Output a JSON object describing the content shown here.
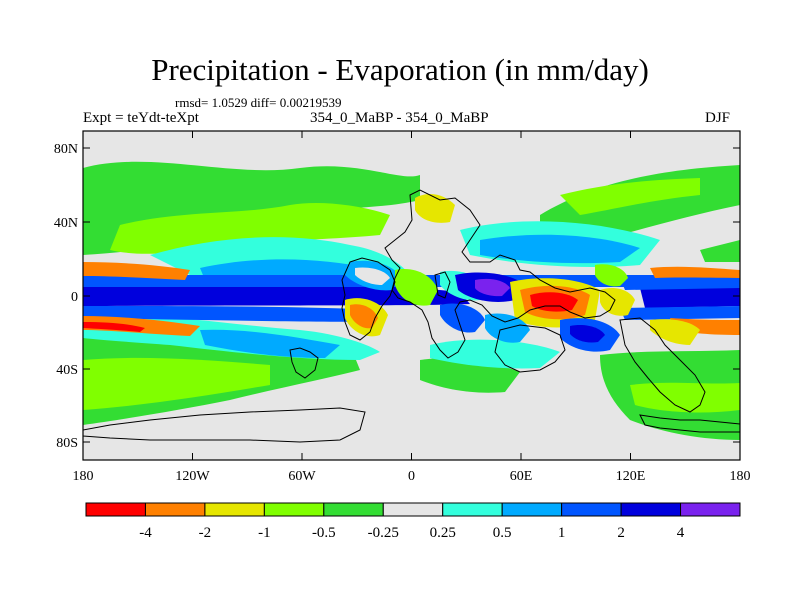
{
  "title": "Precipitation - Evaporation (in mm/day)",
  "stats": "rmsd= 1.0529 diff= 0.00219539",
  "expt_label": "Expt = teYdt-teXpt",
  "subtitle": "354_0_MaBP - 354_0_MaBP",
  "season": "DJF",
  "y_ticks": [
    "80N",
    "40N",
    "0",
    "40S",
    "80S"
  ],
  "x_ticks": [
    "180",
    "120W",
    "60W",
    "0",
    "60E",
    "120E",
    "180"
  ],
  "colorbar": {
    "colors": [
      "#ff0000",
      "#ff8000",
      "#e6e600",
      "#80ff00",
      "#33dd33",
      "#e6e6e6",
      "#33ffdd",
      "#00aaff",
      "#0055ff",
      "#0000dd",
      "#7a22ee"
    ],
    "labels": [
      "-4",
      "-2",
      "-1",
      "-0.5",
      "-0.25",
      "0.25",
      "0.5",
      "1",
      "2",
      "4"
    ]
  }
}
